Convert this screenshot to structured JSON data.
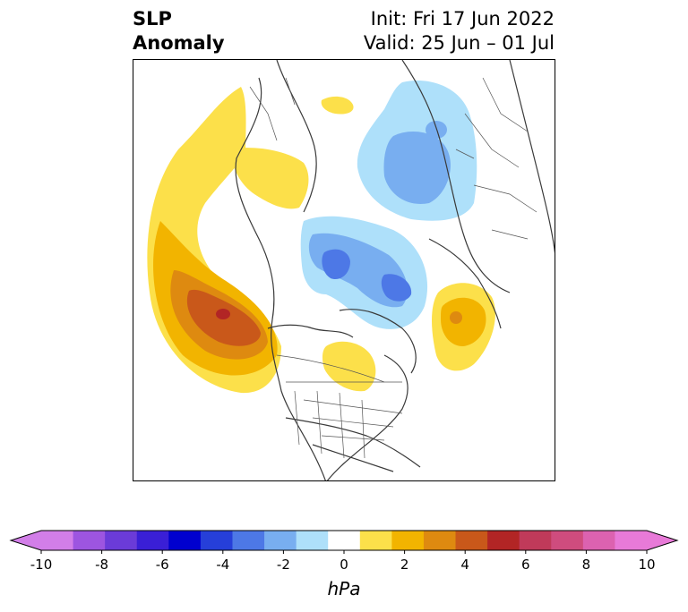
{
  "title": {
    "left_line1": "SLP",
    "left_line2": "Anomaly",
    "right_line1": "Init: Fri 17 Jun 2022",
    "right_line2": "Valid: 25 Jun – 01 Jul"
  },
  "colorbar": {
    "units": "hPa",
    "ticks": [
      "-10",
      "-8",
      "-6",
      "-4",
      "-2",
      "0",
      "2",
      "4",
      "6",
      "8",
      "10"
    ],
    "colors": [
      "#d27ee8",
      "#9d55e0",
      "#6b3bd8",
      "#3a1fd6",
      "#0000cf",
      "#263fd9",
      "#4d78e6",
      "#78aef0",
      "#aee0fa",
      "#ffffff",
      "#fce04a",
      "#f2b400",
      "#de8a10",
      "#c9581a",
      "#b22525",
      "#c03a5a",
      "#cf4c7e",
      "#dc62b0",
      "#e87ad8"
    ],
    "min_color": "#d27ee8",
    "max_color": "#e87ad8"
  },
  "anomaly_colors": {
    "pos1": "#fce04a",
    "pos2": "#f2b400",
    "pos3": "#de8a10",
    "pos4": "#c9581a",
    "pos5": "#b22525",
    "neg1": "#aee0fa",
    "neg2": "#78aef0",
    "neg3": "#4d78e6"
  }
}
